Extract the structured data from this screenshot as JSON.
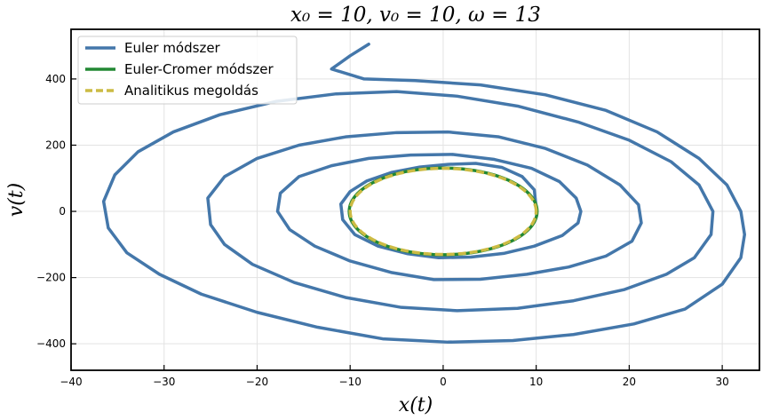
{
  "chart_data": {
    "type": "line",
    "title": "x₀ = 10, v₀ = 10, ω = 13",
    "xlabel": "x(t)",
    "ylabel": "v(t)",
    "xlim": [
      -40,
      34
    ],
    "ylim": [
      -480,
      550
    ],
    "xticks": [
      -40,
      -30,
      -20,
      -10,
      0,
      10,
      20,
      30
    ],
    "yticks": [
      -400,
      -200,
      0,
      200,
      400
    ],
    "x_tick_labels": [
      "−40",
      "−30",
      "−20",
      "−10",
      "0",
      "10",
      "20",
      "30"
    ],
    "y_tick_labels": [
      "−400",
      "−200",
      "0",
      "200",
      "400"
    ],
    "grid": true,
    "legend_position": "top-left",
    "series": [
      {
        "name": "Euler módszer",
        "color": "#4477aa",
        "style": "solid",
        "points": [
          [
            10.0,
            10
          ],
          [
            9.8,
            65
          ],
          [
            8.5,
            105
          ],
          [
            6.3,
            133
          ],
          [
            3.5,
            145
          ],
          [
            0.5,
            142
          ],
          [
            -2.5,
            134
          ],
          [
            -5.5,
            118
          ],
          [
            -8.2,
            92
          ],
          [
            -10.0,
            60
          ],
          [
            -11.0,
            22
          ],
          [
            -10.8,
            -25
          ],
          [
            -9.5,
            -70
          ],
          [
            -7.0,
            -105
          ],
          [
            -3.8,
            -128
          ],
          [
            -0.5,
            -140
          ],
          [
            3.0,
            -138
          ],
          [
            6.5,
            -127
          ],
          [
            9.8,
            -105
          ],
          [
            12.8,
            -73
          ],
          [
            14.5,
            -35
          ],
          [
            14.8,
            0
          ],
          [
            14.3,
            40
          ],
          [
            12.5,
            90
          ],
          [
            9.5,
            130
          ],
          [
            5.5,
            157
          ],
          [
            1.0,
            172
          ],
          [
            -3.5,
            170
          ],
          [
            -8.0,
            160
          ],
          [
            -12.0,
            138
          ],
          [
            -15.5,
            105
          ],
          [
            -17.5,
            55
          ],
          [
            -17.8,
            0
          ],
          [
            -16.5,
            -55
          ],
          [
            -13.8,
            -105
          ],
          [
            -10.0,
            -150
          ],
          [
            -5.5,
            -185
          ],
          [
            -1.0,
            -206
          ],
          [
            4.0,
            -205
          ],
          [
            9.0,
            -190
          ],
          [
            13.5,
            -168
          ],
          [
            17.5,
            -135
          ],
          [
            20.3,
            -90
          ],
          [
            21.3,
            -35
          ],
          [
            21.0,
            20
          ],
          [
            19.0,
            80
          ],
          [
            15.5,
            140
          ],
          [
            11.0,
            190
          ],
          [
            6.0,
            225
          ],
          [
            0.5,
            240
          ],
          [
            -5.0,
            238
          ],
          [
            -10.5,
            225
          ],
          [
            -15.5,
            200
          ],
          [
            -20.0,
            160
          ],
          [
            -23.5,
            105
          ],
          [
            -25.3,
            40
          ],
          [
            -25.0,
            -40
          ],
          [
            -23.5,
            -100
          ],
          [
            -20.5,
            -160
          ],
          [
            -16.0,
            -215
          ],
          [
            -10.5,
            -260
          ],
          [
            -4.5,
            -290
          ],
          [
            1.5,
            -300
          ],
          [
            8.0,
            -293
          ],
          [
            14.0,
            -270
          ],
          [
            19.5,
            -236
          ],
          [
            24.0,
            -190
          ],
          [
            27.0,
            -140
          ],
          [
            28.8,
            -70
          ],
          [
            29.0,
            0
          ],
          [
            27.5,
            80
          ],
          [
            24.5,
            150
          ],
          [
            20.0,
            215
          ],
          [
            14.5,
            270
          ],
          [
            8.0,
            318
          ],
          [
            1.5,
            348
          ],
          [
            -5.0,
            362
          ],
          [
            -11.5,
            355
          ],
          [
            -18.0,
            332
          ],
          [
            -24.0,
            292
          ],
          [
            -29.0,
            240
          ],
          [
            -32.8,
            180
          ],
          [
            -35.3,
            110
          ],
          [
            -36.5,
            30
          ],
          [
            -36.0,
            -50
          ],
          [
            -34.0,
            -125
          ],
          [
            -30.5,
            -190
          ],
          [
            -26.0,
            -250
          ],
          [
            -20.0,
            -305
          ],
          [
            -13.5,
            -350
          ],
          [
            -6.5,
            -385
          ],
          [
            0.5,
            -395
          ],
          [
            7.5,
            -390
          ],
          [
            14.0,
            -372
          ],
          [
            20.5,
            -340
          ],
          [
            26.0,
            -295
          ],
          [
            30.0,
            -220
          ],
          [
            32.0,
            -140
          ],
          [
            32.4,
            -70
          ],
          [
            32.0,
            0
          ],
          [
            30.5,
            80
          ],
          [
            27.5,
            160
          ],
          [
            23.0,
            240
          ],
          [
            17.5,
            305
          ],
          [
            11.0,
            352
          ],
          [
            4.0,
            382
          ],
          [
            -3.0,
            395
          ],
          [
            -8.5,
            400
          ],
          [
            -12.0,
            430
          ],
          [
            -10.0,
            470
          ],
          [
            -8.0,
            505
          ]
        ]
      },
      {
        "name": "Euler-Cromer módszer",
        "color": "#228833",
        "style": "solid",
        "ellipse": {
          "cx": 0,
          "cy": 0,
          "rx": 10.1,
          "ry": 131
        }
      },
      {
        "name": "Analitikus megoldás",
        "color": "#ccbb44",
        "style": "dashed",
        "ellipse": {
          "cx": 0,
          "cy": 0,
          "rx": 10.0,
          "ry": 130
        }
      }
    ]
  }
}
